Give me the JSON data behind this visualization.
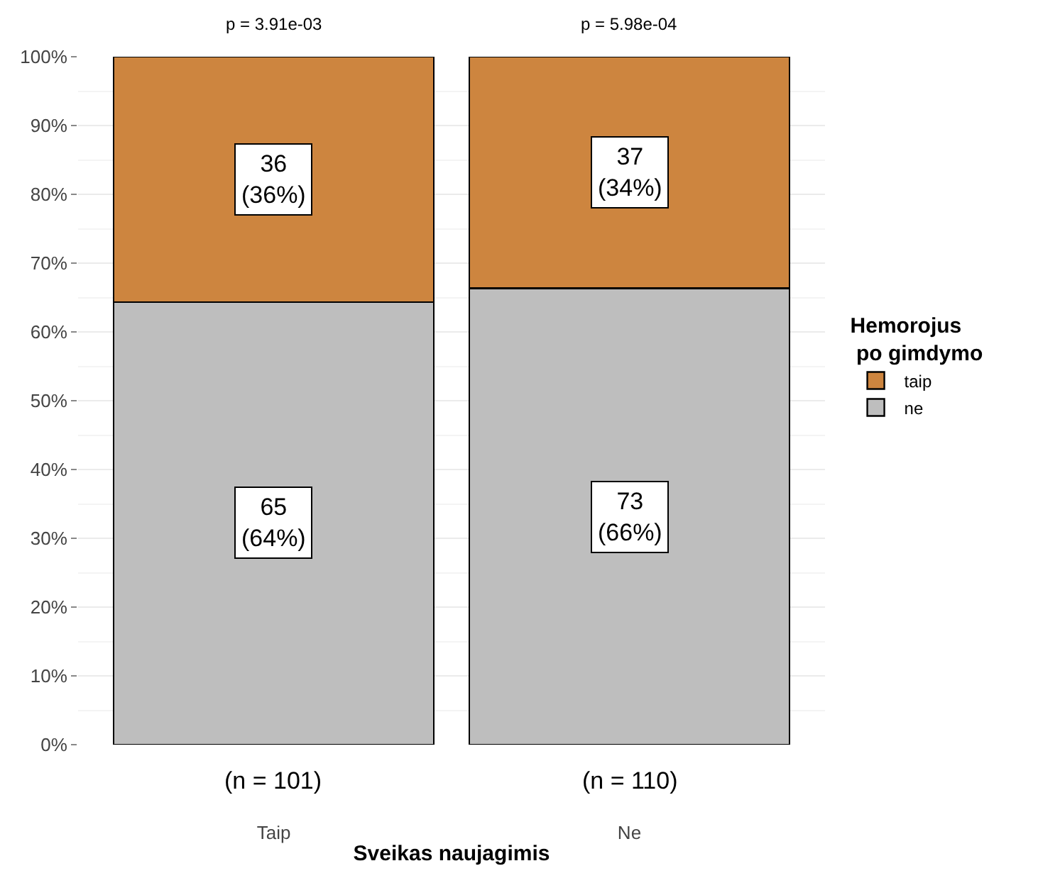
{
  "chart_data": {
    "type": "bar",
    "stacked": true,
    "categories": [
      "Taip",
      "Ne"
    ],
    "xlabel": "Sveikas naujagimis",
    "legend_title": "Hemorojus\n po gimdymo",
    "series": [
      {
        "name": "ne",
        "color": "#bebebe",
        "values": [
          64.36,
          66.36
        ],
        "value_labels": [
          "65\n(64%)",
          "73\n(66%)"
        ]
      },
      {
        "name": "taip",
        "color": "#cd853f",
        "values": [
          35.64,
          33.64
        ],
        "value_labels": [
          "36\n(36%)",
          "37\n(34%)"
        ]
      }
    ],
    "ylim": [
      0,
      100
    ],
    "yticks": [
      {
        "value": 0,
        "label": "0%"
      },
      {
        "value": 10,
        "label": "10%"
      },
      {
        "value": 20,
        "label": "20%"
      },
      {
        "value": 30,
        "label": "30%"
      },
      {
        "value": 40,
        "label": "40%"
      },
      {
        "value": 50,
        "label": "50%"
      },
      {
        "value": 60,
        "label": "60%"
      },
      {
        "value": 70,
        "label": "70%"
      },
      {
        "value": 80,
        "label": "80%"
      },
      {
        "value": 90,
        "label": "90%"
      },
      {
        "value": 100,
        "label": "100%"
      }
    ],
    "annotations": [
      "p = 3.91e-03",
      "p = 5.98e-04",
      "(n = 101)",
      "(n = 110)"
    ],
    "grid": "y",
    "legend": "right"
  }
}
